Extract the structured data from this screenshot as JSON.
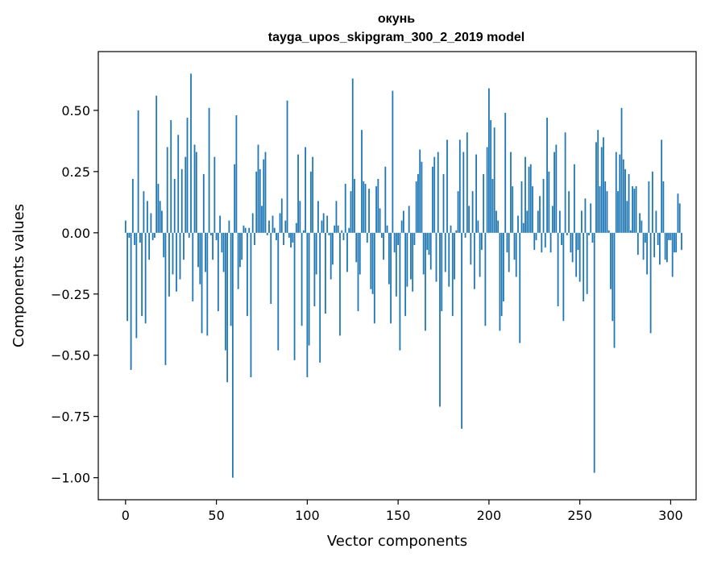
{
  "chart_data": {
    "type": "bar",
    "title": "окунь",
    "subtitle": "tayga_upos_skipgram_300_2_2019 model",
    "xlabel": "Vector components",
    "ylabel": "Components values",
    "xlim": [
      -15,
      314
    ],
    "ylim": [
      -1.09,
      0.74
    ],
    "xticks": [
      0,
      50,
      100,
      150,
      200,
      250,
      300
    ],
    "xtick_labels": [
      "0",
      "50",
      "100",
      "150",
      "200",
      "250",
      "300"
    ],
    "yticks": [
      -1.0,
      -0.75,
      -0.5,
      -0.25,
      0.0,
      0.25,
      0.5
    ],
    "ytick_labels": [
      "−1.00",
      "−0.75",
      "−0.50",
      "−0.25",
      "0.00",
      "0.25",
      "0.50"
    ],
    "grid": false,
    "bar_color": "#1f77b4",
    "x_start": 0,
    "values": [
      0.05,
      -0.36,
      -0.02,
      -0.56,
      0.22,
      -0.05,
      -0.43,
      0.5,
      -0.04,
      -0.34,
      0.17,
      -0.37,
      0.13,
      -0.11,
      0.08,
      -0.03,
      -0.02,
      0.56,
      0.2,
      0.13,
      0.09,
      -0.1,
      -0.54,
      0.35,
      -0.26,
      0.46,
      -0.17,
      0.22,
      -0.24,
      0.4,
      -0.19,
      0.26,
      -0.11,
      0.31,
      0.47,
      -0.02,
      0.65,
      -0.28,
      0.36,
      0.33,
      -0.14,
      -0.21,
      -0.41,
      0.24,
      -0.16,
      -0.42,
      0.51,
      -0.01,
      -0.11,
      0.31,
      -0.03,
      -0.32,
      0.07,
      -0.08,
      -0.16,
      -0.48,
      -0.61,
      0.05,
      -0.38,
      -1.0,
      0.28,
      0.48,
      -0.23,
      -0.14,
      -0.11,
      0.03,
      0.02,
      -0.34,
      0.02,
      -0.59,
      0.08,
      -0.05,
      0.25,
      0.36,
      0.26,
      0.11,
      0.3,
      0.33,
      -0.01,
      0.05,
      -0.29,
      0.07,
      0.02,
      -0.03,
      -0.48,
      0.08,
      0.14,
      -0.05,
      0.05,
      0.54,
      -0.02,
      -0.06,
      -0.04,
      -0.52,
      0.04,
      0.32,
      0.13,
      -0.38,
      0.01,
      0.35,
      -0.59,
      -0.46,
      0.25,
      0.31,
      -0.3,
      -0.17,
      0.13,
      -0.53,
      0.05,
      0.08,
      -0.33,
      0.07,
      -0.01,
      -0.19,
      -0.13,
      0.03,
      0.13,
      0.03,
      -0.42,
      0.01,
      -0.03,
      0.2,
      -0.16,
      0.02,
      0.17,
      0.63,
      0.22,
      -0.12,
      -0.32,
      -0.17,
      0.42,
      0.21,
      0.2,
      -0.04,
      0.18,
      -0.23,
      -0.25,
      -0.37,
      0.19,
      0.22,
      0.1,
      -0.02,
      -0.11,
      0.27,
      0.03,
      -0.21,
      -0.37,
      0.58,
      -0.08,
      -0.26,
      -0.05,
      -0.48,
      0.05,
      0.09,
      -0.34,
      -0.22,
      0.11,
      -0.19,
      -0.24,
      -0.05,
      0.21,
      0.24,
      0.34,
      0.29,
      -0.17,
      -0.4,
      -0.07,
      -0.09,
      -0.15,
      0.27,
      0.31,
      -0.2,
      0.33,
      -0.71,
      -0.32,
      0.24,
      -0.16,
      0.38,
      -0.22,
      0.03,
      -0.34,
      -0.19,
      0.01,
      0.17,
      0.38,
      -0.8,
      0.33,
      -0.02,
      0.41,
      0.11,
      -0.13,
      0.17,
      -0.23,
      0.32,
      0.05,
      -0.18,
      -0.07,
      0.24,
      -0.38,
      0.35,
      0.59,
      0.46,
      0.22,
      0.43,
      0.09,
      0.05,
      -0.4,
      -0.34,
      -0.28,
      0.49,
      -0.08,
      -0.16,
      0.33,
      0.19,
      -0.11,
      -0.18,
      0.07,
      -0.45,
      0.21,
      0.04,
      0.31,
      0.09,
      0.27,
      0.28,
      0.19,
      -0.07,
      -0.03,
      0.09,
      0.15,
      -0.08,
      0.22,
      -0.06,
      0.47,
      0.25,
      -0.08,
      0.11,
      0.33,
      0.36,
      -0.3,
      0.09,
      -0.05,
      -0.36,
      0.41,
      -0.01,
      0.17,
      -0.08,
      -0.12,
      0.28,
      -0.18,
      -0.07,
      -0.2,
      0.09,
      -0.28,
      0.14,
      -0.25,
      -0.01,
      0.12,
      -0.04,
      -0.98,
      0.37,
      0.42,
      0.19,
      0.35,
      0.39,
      0.21,
      0.17,
      0.01,
      -0.23,
      -0.36,
      -0.47,
      0.33,
      0.17,
      0.32,
      0.51,
      0.3,
      0.26,
      0.13,
      0.24,
      0.01,
      0.19,
      0.18,
      0.19,
      -0.09,
      0.08,
      0.05,
      -0.11,
      -0.04,
      -0.17,
      0.21,
      -0.41,
      0.25,
      -0.1,
      0.09,
      -0.05,
      -0.13,
      0.38,
      0.21,
      -0.11,
      -0.12,
      -0.03,
      -0.03,
      -0.18,
      -0.08,
      -0.08,
      0.16,
      0.12,
      -0.07
    ]
  }
}
